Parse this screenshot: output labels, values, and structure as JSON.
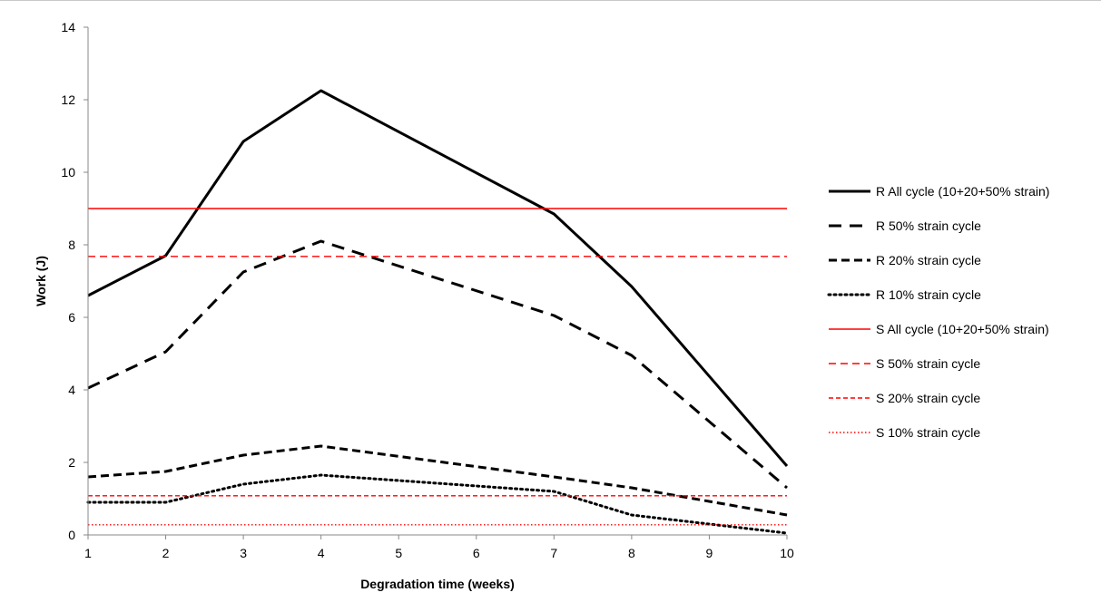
{
  "chart_data": {
    "type": "line",
    "title": "",
    "xlabel": "Degradation time (weeks)",
    "ylabel": "Work (J)",
    "xlim": [
      1,
      10
    ],
    "ylim": [
      0,
      14
    ],
    "x_ticks": [
      "1",
      "2",
      "3",
      "4",
      "5",
      "6",
      "7",
      "8",
      "9",
      "10"
    ],
    "y_ticks": [
      "0",
      "2",
      "4",
      "6",
      "8",
      "10",
      "12",
      "14"
    ],
    "grid": false,
    "legend_position": "right",
    "series": [
      {
        "name": "R All cycle (10+20+50% strain)",
        "color": "#000000",
        "style": "solid-thick",
        "x": [
          1,
          2,
          3,
          4,
          7,
          8,
          10
        ],
        "y": [
          6.6,
          7.7,
          10.85,
          12.25,
          8.85,
          6.85,
          1.9
        ]
      },
      {
        "name": "R 50% strain cycle",
        "color": "#000000",
        "style": "long-dash",
        "x": [
          1,
          2,
          3,
          4,
          7,
          8,
          10
        ],
        "y": [
          4.05,
          5.05,
          7.25,
          8.1,
          6.05,
          4.95,
          1.3
        ]
      },
      {
        "name": "R 20% strain cycle",
        "color": "#000000",
        "style": "dash",
        "x": [
          1,
          2,
          3,
          4,
          7,
          8,
          10
        ],
        "y": [
          1.6,
          1.75,
          2.2,
          2.45,
          1.6,
          1.3,
          0.55
        ]
      },
      {
        "name": "R 10% strain cycle",
        "color": "#000000",
        "style": "dot",
        "x": [
          1,
          2,
          3,
          4,
          7,
          8,
          10
        ],
        "y": [
          0.9,
          0.9,
          1.4,
          1.65,
          1.2,
          0.55,
          0.05
        ]
      },
      {
        "name": "S All cycle (10+20+50% strain)",
        "color": "#ff0000",
        "style": "solid-thin",
        "x": [
          1,
          10
        ],
        "y": [
          9.0,
          9.0
        ]
      },
      {
        "name": "S 50% strain cycle",
        "color": "#ff0000",
        "style": "dash-thin",
        "x": [
          1,
          10
        ],
        "y": [
          7.68,
          7.68
        ]
      },
      {
        "name": "S 20% strain cycle",
        "color": "#ff0000",
        "style": "short-dash-thin",
        "x": [
          1,
          10
        ],
        "y": [
          1.08,
          1.08
        ]
      },
      {
        "name": "S 10% strain cycle",
        "color": "#ff0000",
        "style": "dot-thin",
        "x": [
          1,
          10
        ],
        "y": [
          0.28,
          0.28
        ]
      }
    ]
  }
}
